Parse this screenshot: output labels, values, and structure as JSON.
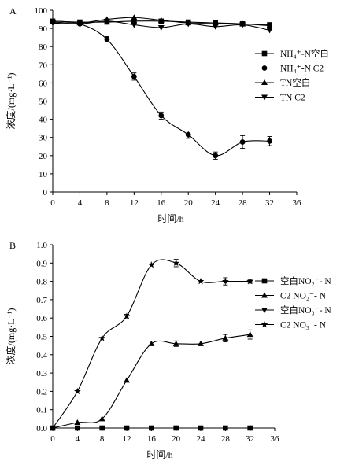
{
  "chart_data": [
    {
      "panel_label": "A",
      "type": "line",
      "xlabel": "时间/h",
      "ylabel": "浓度/(mg·L⁻¹)",
      "xlim": [
        0,
        36
      ],
      "ylim": [
        0,
        100
      ],
      "xticks": [
        "0",
        "4",
        "8",
        "12",
        "16",
        "20",
        "24",
        "28",
        "32",
        "36"
      ],
      "yticks": [
        "0",
        "10",
        "20",
        "30",
        "40",
        "50",
        "60",
        "70",
        "80",
        "90",
        "100"
      ],
      "grid": false,
      "legend_position": "right",
      "x": [
        0,
        4,
        8,
        12,
        16,
        20,
        24,
        28,
        32
      ],
      "series": [
        {
          "name": "NH₄⁺-N空白",
          "marker": "square",
          "values": [
            94,
            93.5,
            93.5,
            94,
            94,
            93.5,
            93,
            92.5,
            92
          ]
        },
        {
          "name": "NH₄⁺-N C2",
          "marker": "circle",
          "values": [
            94,
            92.5,
            84,
            63.5,
            42,
            31.5,
            20,
            27.5,
            28
          ],
          "errors": [
            0,
            0,
            1.5,
            2,
            2,
            2,
            2,
            3.5,
            2.5
          ]
        },
        {
          "name": "TN空白",
          "marker": "triangle-up",
          "values": [
            93.5,
            93,
            95,
            96,
            94.5,
            93,
            93,
            92.5,
            91.5
          ]
        },
        {
          "name": "TN C2",
          "marker": "triangle-down",
          "values": [
            93,
            92.5,
            94,
            92,
            90.5,
            92.5,
            91,
            92,
            89
          ]
        }
      ]
    },
    {
      "panel_label": "B",
      "type": "line",
      "xlabel": "时间/h",
      "ylabel": "浓度/(mg·L⁻¹)",
      "xlim": [
        0,
        36
      ],
      "ylim": [
        0,
        1
      ],
      "xticks": [
        "0",
        "4",
        "8",
        "12",
        "16",
        "20",
        "24",
        "28",
        "32",
        "36"
      ],
      "yticks": [
        "0.0",
        "0.1",
        "0.2",
        "0.3",
        "0.4",
        "0.5",
        "0.6",
        "0.7",
        "0.8",
        "0.9",
        "1.0"
      ],
      "grid": false,
      "legend_position": "right",
      "x": [
        0,
        4,
        8,
        12,
        16,
        20,
        24,
        28,
        32
      ],
      "series": [
        {
          "name": "空白NO₂⁻- N",
          "marker": "square",
          "values": [
            0,
            0,
            0,
            0,
            0,
            0,
            0,
            0,
            0
          ]
        },
        {
          "name": "C2 NO₂⁻- N",
          "marker": "triangle-up",
          "values": [
            0,
            0.03,
            0.05,
            0.26,
            0.46,
            0.46,
            0.46,
            0.49,
            0.51
          ],
          "errors": [
            0,
            0,
            0,
            0,
            0,
            0.015,
            0,
            0.02,
            0.025
          ]
        },
        {
          "name": "空白NO₃⁻- N",
          "marker": "triangle-down",
          "values": [
            0,
            0,
            0,
            0,
            0,
            0,
            0,
            0,
            0
          ]
        },
        {
          "name": "C2 NO₃⁻- N",
          "marker": "star",
          "values": [
            0,
            0.2,
            0.49,
            0.61,
            0.89,
            0.9,
            0.8,
            0.8,
            0.8
          ],
          "errors": [
            0,
            0,
            0,
            0.01,
            0,
            0.02,
            0,
            0.02,
            0.01
          ]
        }
      ]
    }
  ]
}
